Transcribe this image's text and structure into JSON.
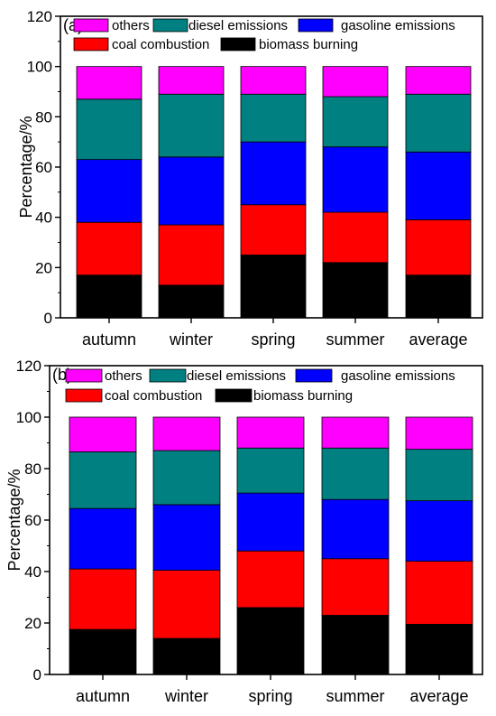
{
  "chart_data": [
    {
      "type": "bar",
      "stacked": true,
      "panel_label": "(a)",
      "ylabel": "Percentage/%",
      "ylim": [
        0,
        120
      ],
      "yticks": [
        "0",
        "20",
        "40",
        "60",
        "80",
        "100",
        "120"
      ],
      "categories": [
        "autumn",
        "winter",
        "spring",
        "summer",
        "average"
      ],
      "legend_entries": [
        "others",
        "diesel emissions",
        "gasoline emissions",
        "coal combustion",
        "biomass burning"
      ],
      "series": [
        {
          "name": "biomass burning",
          "color": "#000000",
          "values": [
            17,
            13,
            25,
            22,
            17
          ]
        },
        {
          "name": "coal combustion",
          "color": "#ff0000",
          "values": [
            21,
            24,
            20,
            20,
            22
          ]
        },
        {
          "name": "gasoline emissions",
          "color": "#0000ff",
          "values": [
            25,
            27,
            25,
            26,
            27
          ]
        },
        {
          "name": "diesel emissions",
          "color": "#008080",
          "values": [
            24,
            25,
            19,
            20,
            23
          ]
        },
        {
          "name": "others",
          "color": "#ff00ff",
          "values": [
            13,
            11,
            11,
            12,
            11
          ]
        }
      ]
    },
    {
      "type": "bar",
      "stacked": true,
      "panel_label": "(b)",
      "ylabel": "Percentage/%",
      "ylim": [
        0,
        120
      ],
      "yticks": [
        "0",
        "20",
        "40",
        "60",
        "80",
        "100",
        "120"
      ],
      "categories": [
        "autumn",
        "winter",
        "spring",
        "summer",
        "average"
      ],
      "legend_entries": [
        "others",
        "diesel emissions",
        "gasoline emissions",
        "coal combustion",
        "biomass burning"
      ],
      "series": [
        {
          "name": "biomass burning",
          "color": "#000000",
          "values": [
            17.5,
            14,
            26,
            23,
            19.5
          ]
        },
        {
          "name": "coal combustion",
          "color": "#ff0000",
          "values": [
            23.5,
            26.5,
            22,
            22,
            24.5
          ]
        },
        {
          "name": "gasoline emissions",
          "color": "#0000ff",
          "values": [
            23.5,
            25.5,
            22.5,
            23,
            23.5
          ]
        },
        {
          "name": "diesel emissions",
          "color": "#008080",
          "values": [
            22,
            21,
            17.5,
            20,
            20
          ]
        },
        {
          "name": "others",
          "color": "#ff00ff",
          "values": [
            13.5,
            13,
            12,
            12,
            12.5
          ]
        }
      ]
    }
  ]
}
